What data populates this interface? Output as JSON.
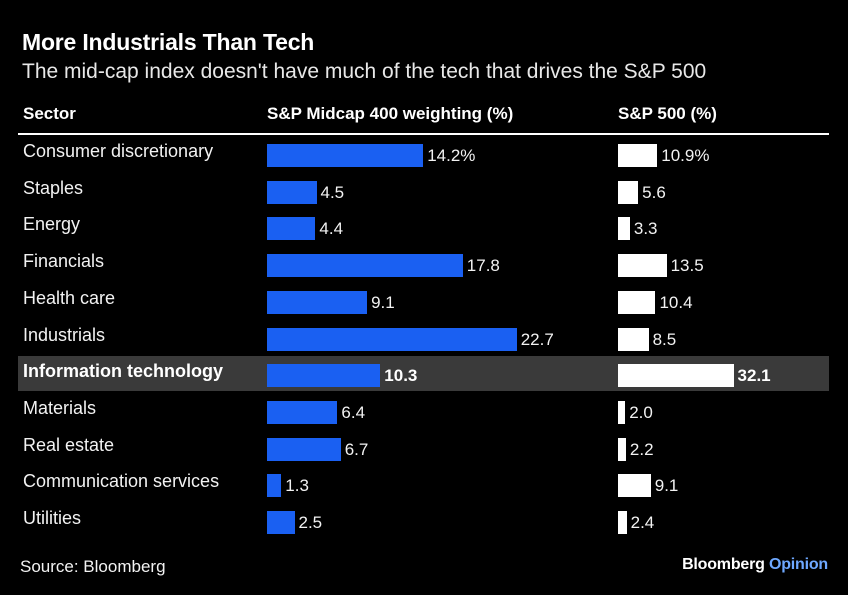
{
  "chart_data": {
    "type": "bar",
    "title": "More Industrials Than Tech",
    "subtitle": "The mid-cap index doesn't have much of the tech that drives the S&P 500",
    "column_headers": {
      "sector": "Sector",
      "midcap": "S&P Midcap 400 weighting (%)",
      "sp500": "S&P 500 (%)"
    },
    "categories": [
      "Consumer discretionary",
      "Staples",
      "Energy",
      "Financials",
      "Health care",
      "Industrials",
      "Information technology",
      "Materials",
      "Real estate",
      "Communication services",
      "Utilities"
    ],
    "series": [
      {
        "name": "S&P Midcap 400 weighting (%)",
        "color": "#1a60f2",
        "values": [
          14.2,
          4.5,
          4.4,
          17.8,
          9.1,
          22.7,
          10.3,
          6.4,
          6.7,
          1.3,
          2.5
        ],
        "labels": [
          "14.2%",
          "4.5",
          "4.4",
          "17.8",
          "9.1",
          "22.7",
          "10.3",
          "6.4",
          "6.7",
          "1.3",
          "2.5"
        ]
      },
      {
        "name": "S&P 500 (%)",
        "color": "#ffffff",
        "values": [
          10.9,
          5.6,
          3.3,
          13.5,
          10.4,
          8.5,
          32.1,
          2.0,
          2.2,
          9.1,
          2.4
        ],
        "labels": [
          "10.9%",
          "5.6",
          "3.3",
          "13.5",
          "10.4",
          "8.5",
          "32.1",
          "2.0",
          "2.2",
          "9.1",
          "2.4"
        ]
      }
    ],
    "highlighted_category": "Information technology",
    "source": "Source: Bloomberg"
  },
  "branding": {
    "name": "Bloomberg",
    "section": "Opinion"
  }
}
